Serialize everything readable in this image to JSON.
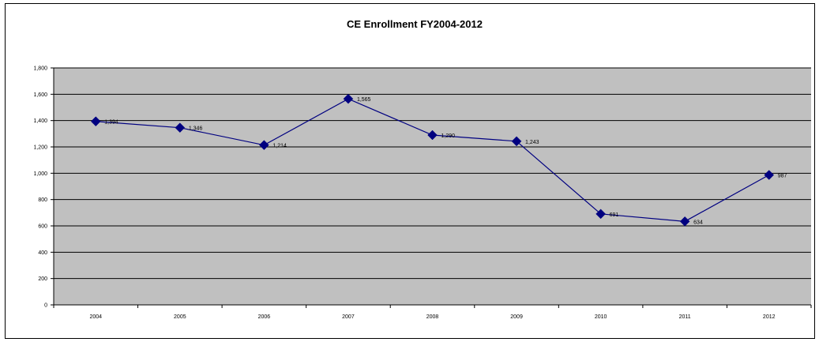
{
  "chart_data": {
    "type": "line",
    "title": "CE Enrollment FY2004-2012",
    "xlabel": "",
    "ylabel": "",
    "categories": [
      "2004",
      "2005",
      "2006",
      "2007",
      "2008",
      "2009",
      "2010",
      "2011",
      "2012"
    ],
    "values": [
      1394,
      1346,
      1214,
      1565,
      1290,
      1243,
      691,
      634,
      987
    ],
    "data_labels": [
      "1,394",
      "1,346",
      "1,214",
      "1,565",
      "1,290",
      "1,243",
      "691",
      "634",
      "987"
    ],
    "ylim": [
      0,
      1800
    ],
    "yticks": [
      0,
      200,
      400,
      600,
      800,
      1000,
      1200,
      1400,
      1600,
      1800
    ],
    "ytick_labels": [
      "0",
      "200",
      "400",
      "600",
      "800",
      "1,000",
      "1,200",
      "1,400",
      "1,600",
      "1,800"
    ],
    "grid": true,
    "legend": "none",
    "colors": {
      "plot_bg": "#c0c0c0",
      "line": "#000080",
      "marker": "#000080",
      "grid": "#000000"
    }
  }
}
